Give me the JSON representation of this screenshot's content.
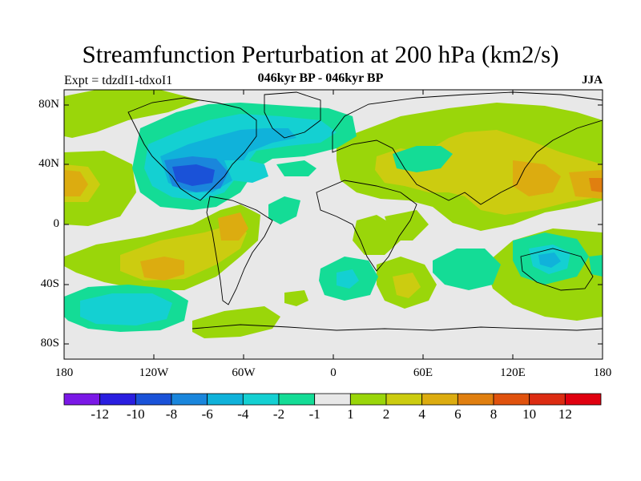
{
  "header": {
    "title": "Streamfunction Perturbation at 200 hPa (km2/s)",
    "expt": "Expt = tdzdI1-tdxoI1",
    "period": "046kyr BP - 046kyr BP",
    "season": "JJA"
  },
  "map": {
    "lon_range": [
      -180,
      180
    ],
    "lat_range": [
      -90,
      90
    ],
    "ytick_labels": [
      "80N",
      "40N",
      "0",
      "40S",
      "80S"
    ],
    "xtick_labels": [
      "180",
      "120W",
      "60W",
      "0",
      "60E",
      "120E",
      "180"
    ]
  },
  "colorbar": {
    "labels": [
      "-12",
      "-10",
      "-8",
      "-6",
      "-4",
      "-2",
      "-1",
      "1",
      "2",
      "4",
      "6",
      "8",
      "10",
      "12"
    ],
    "colors": [
      "#7a18e6",
      "#2a1ee0",
      "#1a52d8",
      "#1a86dc",
      "#10b2da",
      "#14d0d2",
      "#14dc96",
      "#e8e8e8",
      "#9ad60a",
      "#cccc10",
      "#dcac10",
      "#e07f10",
      "#e0520e",
      "#dc2c12",
      "#e00010"
    ]
  }
}
